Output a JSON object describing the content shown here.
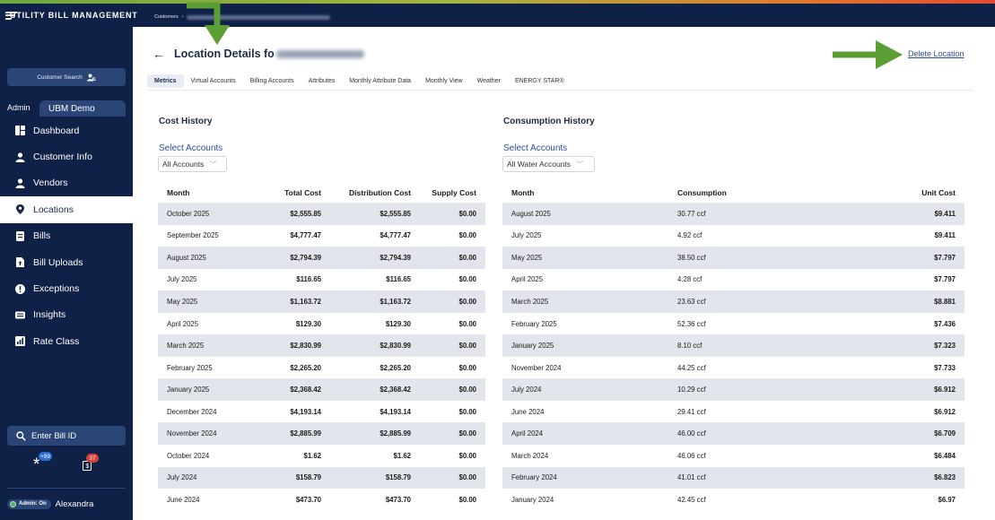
{
  "app": {
    "logo_text": "UTILITY BILL MANAGEMENT",
    "breadcrumb_root": "Customers",
    "breadcrumb_sep": "›"
  },
  "sidebar": {
    "customer_search": "Customer Search",
    "org_admin": "Admin",
    "org_tab": "UBM Demo",
    "items": [
      {
        "label": "Dashboard",
        "icon": "dashboard-icon"
      },
      {
        "label": "Customer Info",
        "icon": "user-icon"
      },
      {
        "label": "Vendors",
        "icon": "user-icon"
      },
      {
        "label": "Locations",
        "icon": "location-pin-icon",
        "active": true
      },
      {
        "label": "Bills",
        "icon": "bill-icon"
      },
      {
        "label": "Bill Uploads",
        "icon": "upload-icon"
      },
      {
        "label": "Exceptions",
        "icon": "exclamation-icon"
      },
      {
        "label": "Insights",
        "icon": "insights-icon"
      },
      {
        "label": "Rate Class",
        "icon": "rate-class-icon"
      }
    ],
    "enter_bill_id": "Enter Bill ID",
    "badge_one": "+99",
    "badge_two": "37",
    "admin_toggle": "Admin: On",
    "user_name": "Alexandra"
  },
  "header": {
    "title": "Location Details fo",
    "delete_link": "Delete Location"
  },
  "tabs": [
    {
      "label": "Metrics",
      "active": true
    },
    {
      "label": "Virtual Accounts"
    },
    {
      "label": "Billing Accounts"
    },
    {
      "label": "Attributes"
    },
    {
      "label": "Monthly Attribute Data"
    },
    {
      "label": "Monthly View"
    },
    {
      "label": "Weather"
    },
    {
      "label": "ENERGY STAR®"
    }
  ],
  "cost_history": {
    "title": "Cost History",
    "select_label": "Select Accounts",
    "select_value": "All Accounts",
    "columns": [
      "Month",
      "Total Cost",
      "Distribution Cost",
      "Supply Cost"
    ],
    "rows": [
      [
        "October 2025",
        "$2,555.85",
        "$2,555.85",
        "$0.00"
      ],
      [
        "September 2025",
        "$4,777.47",
        "$4,777.47",
        "$0.00"
      ],
      [
        "August 2025",
        "$2,794.39",
        "$2,794.39",
        "$0.00"
      ],
      [
        "July 2025",
        "$116.65",
        "$116.65",
        "$0.00"
      ],
      [
        "May 2025",
        "$1,163.72",
        "$1,163.72",
        "$0.00"
      ],
      [
        "April 2025",
        "$129.30",
        "$129.30",
        "$0.00"
      ],
      [
        "March 2025",
        "$2,830.99",
        "$2,830.99",
        "$0.00"
      ],
      [
        "February 2025",
        "$2,265.20",
        "$2,265.20",
        "$0.00"
      ],
      [
        "January 2025",
        "$2,368.42",
        "$2,368.42",
        "$0.00"
      ],
      [
        "December 2024",
        "$4,193.14",
        "$4,193.14",
        "$0.00"
      ],
      [
        "November 2024",
        "$2,885.99",
        "$2,885.99",
        "$0.00"
      ],
      [
        "October 2024",
        "$1.62",
        "$1.62",
        "$0.00"
      ],
      [
        "July 2024",
        "$158.79",
        "$158.79",
        "$0.00"
      ],
      [
        "June 2024",
        "$473.70",
        "$473.70",
        "$0.00"
      ]
    ]
  },
  "consumption_history": {
    "title": "Consumption History",
    "select_label": "Select Accounts",
    "select_value": "All Water Accounts",
    "columns": [
      "Month",
      "Consumption",
      "Unit Cost"
    ],
    "rows": [
      [
        "August 2025",
        "30.77 ccf",
        "$9.411"
      ],
      [
        "July 2025",
        "4.92 ccf",
        "$9.411"
      ],
      [
        "May 2025",
        "38.50 ccf",
        "$7.797"
      ],
      [
        "April 2025",
        "4.28 ccf",
        "$7.797"
      ],
      [
        "March 2025",
        "23.63 ccf",
        "$8.881"
      ],
      [
        "February 2025",
        "52.36 ccf",
        "$7.436"
      ],
      [
        "January 2025",
        "8.10 ccf",
        "$7.323"
      ],
      [
        "November 2024",
        "44.25 ccf",
        "$7.733"
      ],
      [
        "July 2024",
        "10.29 ccf",
        "$6.912"
      ],
      [
        "June 2024",
        "29.41 ccf",
        "$6.912"
      ],
      [
        "April 2024",
        "46.00 ccf",
        "$6.709"
      ],
      [
        "March 2024",
        "46.06 ccf",
        "$6.484"
      ],
      [
        "February 2024",
        "41.01 ccf",
        "$6.823"
      ],
      [
        "January 2024",
        "42.45 ccf",
        "$6.97"
      ]
    ]
  },
  "colors": {
    "sidebar_bg": "#0f2147",
    "accent_blue": "#2d4fa1",
    "annotation_arrow": "#5a9e34",
    "row_stripe": "#e3e5ec"
  }
}
